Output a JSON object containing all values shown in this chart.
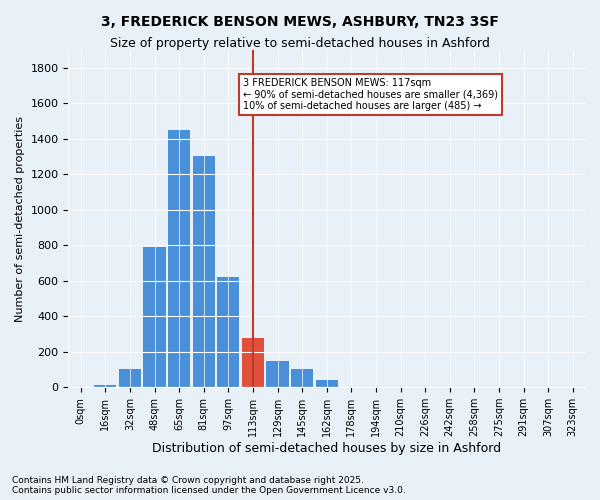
{
  "title1": "3, FREDERICK BENSON MEWS, ASHBURY, TN23 3SF",
  "title2": "Size of property relative to semi-detached houses in Ashford",
  "xlabel": "Distribution of semi-detached houses by size in Ashford",
  "ylabel": "Number of semi-detached properties",
  "bins": [
    "0sqm",
    "16sqm",
    "32sqm",
    "48sqm",
    "65sqm",
    "81sqm",
    "97sqm",
    "113sqm",
    "129sqm",
    "145sqm",
    "162sqm",
    "178sqm",
    "194sqm",
    "210sqm",
    "226sqm",
    "242sqm",
    "258sqm",
    "275sqm",
    "291sqm",
    "307sqm",
    "323sqm"
  ],
  "values": [
    0,
    10,
    100,
    790,
    1450,
    1300,
    620,
    280,
    150,
    100,
    40,
    0,
    0,
    0,
    0,
    0,
    0,
    0,
    0,
    0,
    0
  ],
  "highlight_index": 7,
  "highlight_value": 113,
  "annotation_title": "3 FREDERICK BENSON MEWS: 117sqm",
  "annotation_line1": "← 90% of semi-detached houses are smaller (4,369)",
  "annotation_line2": "10% of semi-detached houses are larger (485) →",
  "bar_color": "#4a90d9",
  "highlight_bar_color": "#e0503a",
  "vline_color": "#c0392b",
  "box_color": "#c0392b",
  "bg_color": "#e8f0f8",
  "footer": "Contains HM Land Registry data © Crown copyright and database right 2025.\nContains public sector information licensed under the Open Government Licence v3.0.",
  "ymax": 1900,
  "yticks": [
    0,
    200,
    400,
    600,
    800,
    1000,
    1200,
    1400,
    1600,
    1800
  ]
}
